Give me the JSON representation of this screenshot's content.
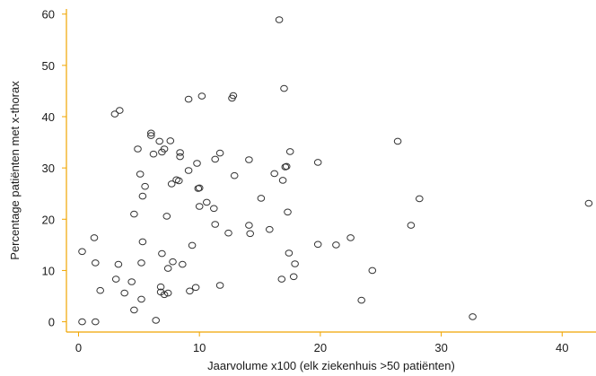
{
  "chart_data": {
    "type": "scatter",
    "title": "",
    "xlabel": "Jaarvolume x100 (elk ziekenhuis >50 patiënten)",
    "ylabel": "Percentage patiënten met x-thorax",
    "xlim": [
      -1,
      42.8
    ],
    "ylim": [
      -2,
      61
    ],
    "xticks": [
      0,
      10,
      20,
      30,
      40
    ],
    "yticks": [
      0,
      10,
      20,
      30,
      40,
      50,
      60
    ],
    "grid": false,
    "legend": "none",
    "axis_color": "#F0A500",
    "marker_color": "#333333",
    "points": [
      [
        0.3,
        0
      ],
      [
        1.4,
        0
      ],
      [
        6.4,
        0.3
      ],
      [
        32.6,
        1.0
      ],
      [
        4.6,
        2.3
      ],
      [
        23.4,
        4.2
      ],
      [
        5.2,
        4.4
      ],
      [
        7.1,
        5.3
      ],
      [
        3.8,
        5.6
      ],
      [
        6.8,
        5.8
      ],
      [
        1.8,
        6.1
      ],
      [
        7.4,
        5.6
      ],
      [
        9.2,
        6.0
      ],
      [
        9.7,
        6.7
      ],
      [
        11.7,
        7.1
      ],
      [
        6.8,
        6.8
      ],
      [
        4.4,
        7.8
      ],
      [
        3.1,
        8.3
      ],
      [
        16.8,
        8.3
      ],
      [
        17.8,
        8.8
      ],
      [
        24.3,
        10.0
      ],
      [
        7.4,
        10.4
      ],
      [
        3.3,
        11.2
      ],
      [
        7.8,
        11.7
      ],
      [
        8.6,
        11.2
      ],
      [
        1.4,
        11.5
      ],
      [
        5.2,
        11.5
      ],
      [
        17.9,
        11.3
      ],
      [
        6.9,
        13.3
      ],
      [
        0.3,
        13.7
      ],
      [
        17.4,
        13.4
      ],
      [
        9.4,
        14.9
      ],
      [
        19.8,
        15.1
      ],
      [
        21.3,
        15.0
      ],
      [
        5.3,
        15.6
      ],
      [
        22.5,
        16.4
      ],
      [
        1.3,
        16.4
      ],
      [
        12.4,
        17.3
      ],
      [
        14.2,
        17.2
      ],
      [
        15.8,
        18.0
      ],
      [
        11.3,
        19.0
      ],
      [
        14.1,
        18.8
      ],
      [
        27.5,
        18.8
      ],
      [
        17.3,
        21.4
      ],
      [
        28.2,
        24.0
      ],
      [
        4.6,
        21.0
      ],
      [
        7.3,
        20.6
      ],
      [
        10.0,
        22.5
      ],
      [
        10.6,
        23.3
      ],
      [
        11.2,
        22.1
      ],
      [
        42.2,
        23.1
      ],
      [
        5.3,
        24.5
      ],
      [
        15.1,
        24.1
      ],
      [
        5.5,
        26.4
      ],
      [
        9.9,
        26.0
      ],
      [
        7.7,
        26.9
      ],
      [
        8.3,
        27.5
      ],
      [
        8.1,
        27.7
      ],
      [
        10.0,
        26.1
      ],
      [
        16.9,
        27.6
      ],
      [
        5.1,
        28.8
      ],
      [
        12.9,
        28.5
      ],
      [
        16.2,
        28.9
      ],
      [
        9.1,
        29.5
      ],
      [
        17.1,
        30.2
      ],
      [
        17.2,
        30.3
      ],
      [
        9.8,
        30.9
      ],
      [
        19.8,
        31.1
      ],
      [
        11.3,
        31.7
      ],
      [
        14.1,
        31.6
      ],
      [
        6.2,
        32.7
      ],
      [
        8.4,
        32.2
      ],
      [
        6.9,
        33.1
      ],
      [
        17.5,
        33.2
      ],
      [
        11.7,
        32.9
      ],
      [
        8.4,
        33.0
      ],
      [
        4.9,
        33.7
      ],
      [
        7.1,
        33.7
      ],
      [
        6.7,
        35.2
      ],
      [
        7.6,
        35.3
      ],
      [
        26.4,
        35.2
      ],
      [
        6.0,
        36.3
      ],
      [
        6.0,
        36.8
      ],
      [
        3.0,
        40.5
      ],
      [
        3.4,
        41.2
      ],
      [
        9.1,
        43.4
      ],
      [
        10.2,
        44.0
      ],
      [
        12.7,
        43.6
      ],
      [
        12.8,
        44.1
      ],
      [
        17.0,
        45.5
      ],
      [
        16.6,
        58.9
      ]
    ]
  }
}
